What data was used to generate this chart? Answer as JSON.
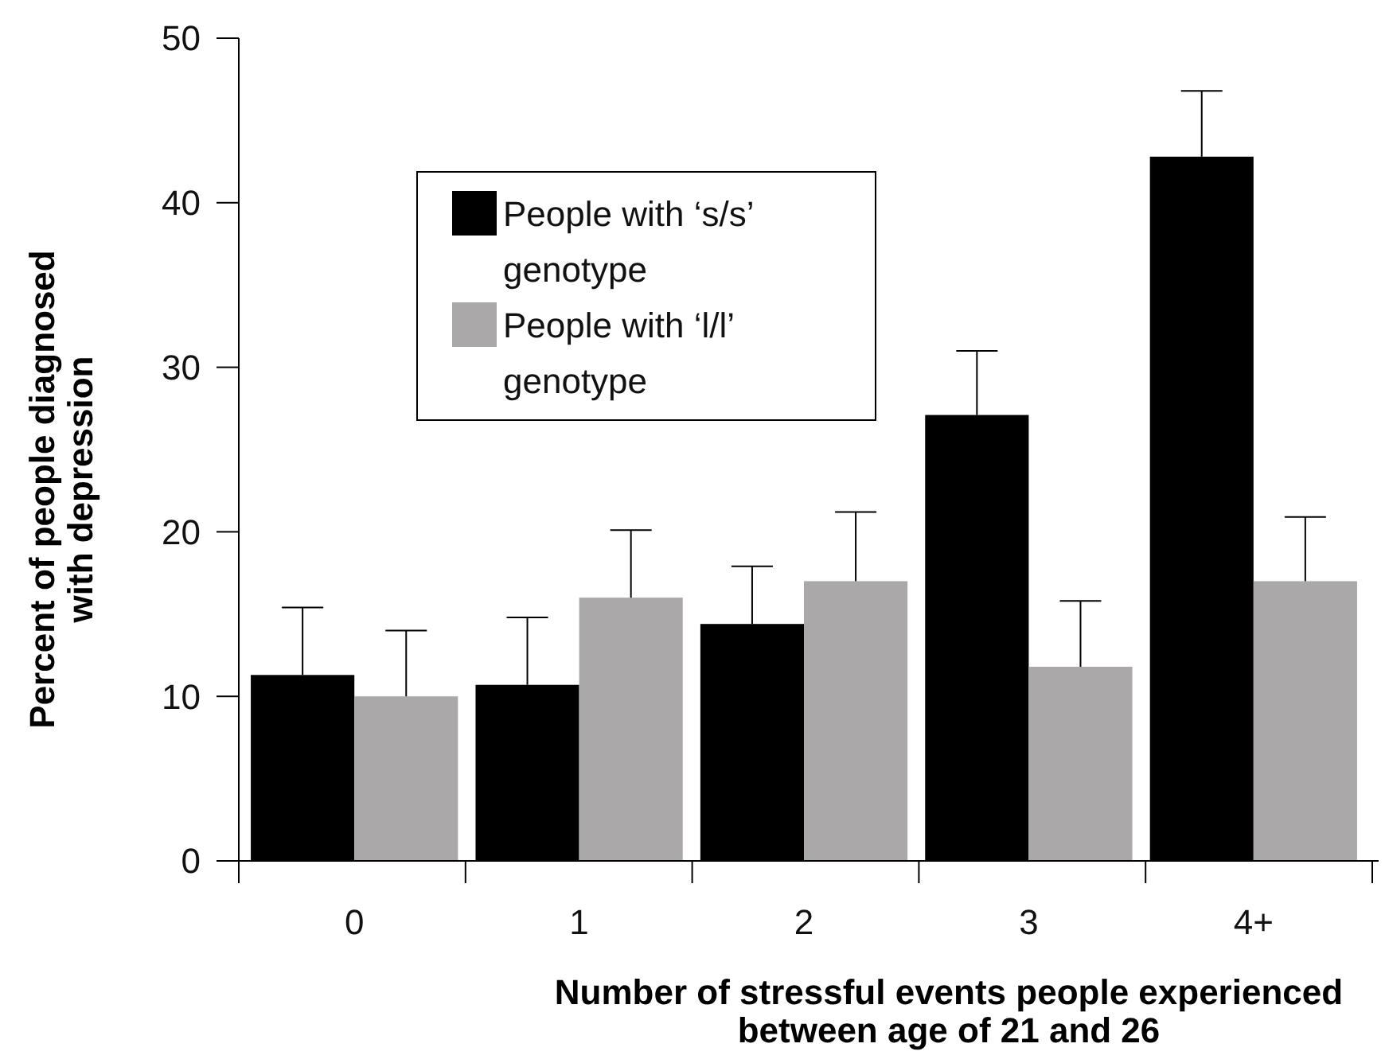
{
  "chart_data": {
    "type": "bar",
    "xlabel": "Number of stressful events people experienced between age of 21 and 26",
    "ylabel": "Percent of people diagnosed with depression",
    "categories": [
      "0",
      "1",
      "2",
      "3",
      "4+"
    ],
    "series": [
      {
        "name": "People with ‘s/s’ genotype",
        "color": "#000000",
        "values": [
          11.3,
          10.7,
          14.4,
          27.1,
          42.8
        ],
        "errors": [
          [
            11.3,
            15.4
          ],
          [
            10.7,
            14.8
          ],
          [
            14.4,
            17.9
          ],
          [
            27.1,
            31.0
          ],
          [
            42.8,
            46.8
          ]
        ]
      },
      {
        "name": "People with ‘l/l’ genotype",
        "color": "#aba8aa",
        "values": [
          10.0,
          16.0,
          17.0,
          11.8,
          17.0
        ],
        "errors": [
          [
            10.0,
            14.0
          ],
          [
            16.0,
            20.1
          ],
          [
            17.0,
            21.2
          ],
          [
            11.8,
            15.8
          ],
          [
            17.0,
            20.9
          ]
        ]
      }
    ],
    "ylim": [
      0,
      50
    ],
    "yticks": [
      0,
      10,
      20,
      30,
      40,
      50
    ],
    "legend": "top",
    "grid": false
  }
}
